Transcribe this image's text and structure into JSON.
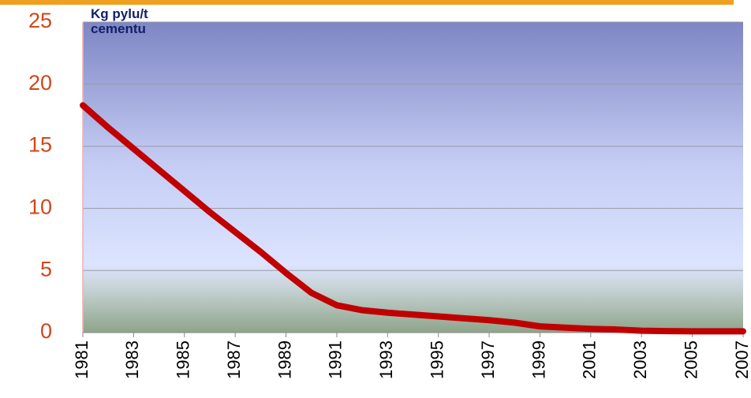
{
  "chart_data": {
    "type": "line",
    "ylabel": "Kg pylu/t cementu",
    "x": [
      1981,
      1982,
      1983,
      1984,
      1985,
      1986,
      1987,
      1988,
      1989,
      1990,
      1991,
      1992,
      1993,
      1994,
      1995,
      1996,
      1997,
      1998,
      1999,
      2000,
      2001,
      2002,
      2003,
      2004,
      2005,
      2006,
      2007
    ],
    "series": [
      {
        "name": "Kg pylu/t cementu",
        "color": "#c00000",
        "values": [
          18.3,
          16.5,
          14.8,
          13.1,
          11.4,
          9.7,
          8.1,
          6.5,
          4.8,
          3.2,
          2.2,
          1.8,
          1.6,
          1.45,
          1.3,
          1.15,
          1.0,
          0.8,
          0.5,
          0.4,
          0.3,
          0.25,
          0.15,
          0.12,
          0.1,
          0.1,
          0.1
        ]
      }
    ],
    "xlim": [
      1981,
      2007
    ],
    "xticks": [
      1981,
      1983,
      1985,
      1987,
      1989,
      1991,
      1993,
      1995,
      1997,
      1999,
      2001,
      2003,
      2005,
      2007
    ],
    "ylim": [
      0,
      25
    ],
    "yticks": [
      0,
      5,
      10,
      15,
      20,
      25
    ],
    "grid": true
  }
}
